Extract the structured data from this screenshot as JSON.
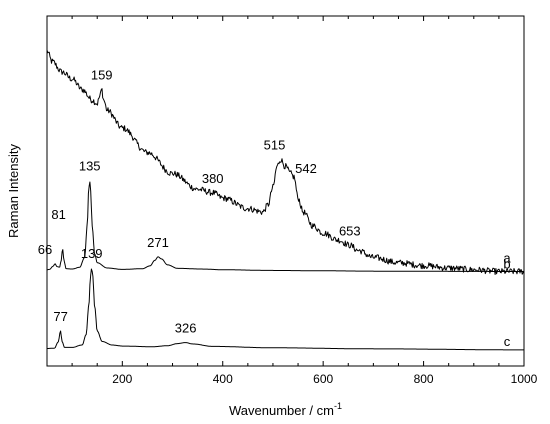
{
  "chart_data": {
    "type": "line",
    "xlabel": "Wavenumber / cm",
    "xlabel_sup": "-1",
    "ylabel": "Raman Intensity",
    "xlim": [
      50,
      1000
    ],
    "ylim": [
      0,
      100
    ],
    "x_ticks": [
      200,
      400,
      600,
      800,
      1000
    ],
    "x_minor_step": 50,
    "y_ticks": [],
    "grid": false,
    "legend": "none",
    "series": [
      {
        "label": "a",
        "label_x": 800,
        "noise": 0.9,
        "points": [
          [
            50,
            90
          ],
          [
            60,
            87
          ],
          [
            80,
            84
          ],
          [
            100,
            82
          ],
          [
            120,
            79
          ],
          [
            140,
            76
          ],
          [
            150,
            75
          ],
          [
            155,
            77
          ],
          [
            159,
            79
          ],
          [
            163,
            76
          ],
          [
            170,
            73
          ],
          [
            200,
            68
          ],
          [
            250,
            61
          ],
          [
            300,
            55
          ],
          [
            350,
            50.5
          ],
          [
            380,
            49.5
          ],
          [
            400,
            48
          ],
          [
            450,
            45
          ],
          [
            480,
            44
          ],
          [
            490,
            46
          ],
          [
            500,
            51
          ],
          [
            508,
            57
          ],
          [
            515,
            59
          ],
          [
            525,
            57
          ],
          [
            535,
            55
          ],
          [
            542,
            54
          ],
          [
            550,
            48
          ],
          [
            560,
            44
          ],
          [
            580,
            40
          ],
          [
            600,
            38
          ],
          [
            630,
            36
          ],
          [
            653,
            34.5
          ],
          [
            670,
            33
          ],
          [
            700,
            31
          ],
          [
            750,
            29.5
          ],
          [
            800,
            28.7
          ],
          [
            850,
            28
          ],
          [
            900,
            27.5
          ],
          [
            950,
            27
          ],
          [
            1000,
            27
          ]
        ],
        "peaks": [
          [
            159,
            "159"
          ],
          [
            380,
            "380"
          ],
          [
            515,
            "515"
          ],
          [
            542,
            "542"
          ],
          [
            653,
            "653"
          ]
        ]
      },
      {
        "label": "b",
        "label_x": 800,
        "noise": 0,
        "points": [
          [
            50,
            27.5
          ],
          [
            55,
            27.6
          ],
          [
            62,
            28.5
          ],
          [
            66,
            29.2
          ],
          [
            70,
            28.4
          ],
          [
            75,
            28.2
          ],
          [
            78,
            30
          ],
          [
            81,
            33.5
          ],
          [
            84,
            30
          ],
          [
            88,
            27.8
          ],
          [
            100,
            27.7
          ],
          [
            115,
            28.2
          ],
          [
            125,
            31
          ],
          [
            130,
            40
          ],
          [
            133,
            50
          ],
          [
            135,
            53
          ],
          [
            137,
            50
          ],
          [
            140,
            40
          ],
          [
            145,
            32
          ],
          [
            150,
            29.5
          ],
          [
            170,
            28
          ],
          [
            200,
            27.6
          ],
          [
            240,
            27.8
          ],
          [
            255,
            28.6
          ],
          [
            265,
            30.2
          ],
          [
            271,
            31.2
          ],
          [
            278,
            30.6
          ],
          [
            290,
            28.9
          ],
          [
            310,
            27.9
          ],
          [
            360,
            27.7
          ],
          [
            400,
            27.5
          ],
          [
            500,
            27.3
          ],
          [
            600,
            27.2
          ],
          [
            700,
            27.1
          ],
          [
            800,
            27.05
          ],
          [
            1000,
            27
          ]
        ],
        "peaks": [
          [
            66,
            "66"
          ],
          [
            81,
            "81"
          ],
          [
            135,
            "135"
          ],
          [
            271,
            "271"
          ]
        ]
      },
      {
        "label": "c",
        "label_x": 800,
        "noise": 0,
        "points": [
          [
            50,
            5
          ],
          [
            65,
            5.1
          ],
          [
            72,
            6.8
          ],
          [
            77,
            10
          ],
          [
            80,
            7
          ],
          [
            85,
            5.3
          ],
          [
            100,
            5.3
          ],
          [
            120,
            6
          ],
          [
            128,
            9
          ],
          [
            133,
            17
          ],
          [
            137,
            26
          ],
          [
            139,
            28
          ],
          [
            141,
            26
          ],
          [
            145,
            17
          ],
          [
            150,
            10
          ],
          [
            160,
            7
          ],
          [
            180,
            6
          ],
          [
            200,
            5.7
          ],
          [
            260,
            5.5
          ],
          [
            290,
            5.8
          ],
          [
            310,
            6.4
          ],
          [
            326,
            6.7
          ],
          [
            340,
            6.3
          ],
          [
            380,
            5.6
          ],
          [
            500,
            5.2
          ],
          [
            700,
            4.9
          ],
          [
            1000,
            4.6
          ]
        ],
        "peaks": [
          [
            77,
            "77"
          ],
          [
            139,
            "139"
          ],
          [
            326,
            "326"
          ]
        ]
      }
    ]
  }
}
